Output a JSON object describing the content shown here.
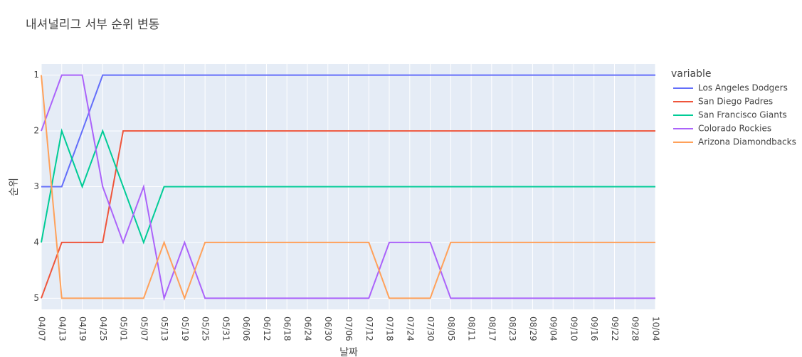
{
  "chart_data": {
    "type": "line",
    "title": "내셔널리그 서부 순위 변동",
    "x_label": "날짜",
    "y_label": "순위",
    "legend_title": "variable",
    "categories": [
      "04/07",
      "04/13",
      "04/19",
      "04/25",
      "05/01",
      "05/07",
      "05/13",
      "05/19",
      "05/25",
      "05/31",
      "06/06",
      "06/12",
      "06/18",
      "06/24",
      "06/30",
      "07/06",
      "07/12",
      "07/18",
      "07/24",
      "07/30",
      "08/05",
      "08/11",
      "08/17",
      "08/23",
      "08/29",
      "09/04",
      "09/10",
      "09/16",
      "09/22",
      "09/28",
      "10/04"
    ],
    "ylim": [
      5.2,
      0.8
    ],
    "yticks": [
      1,
      2,
      3,
      4,
      5
    ],
    "grid": true,
    "series": [
      {
        "name": "Los Angeles Dodgers",
        "color": "#636efa",
        "values": [
          3,
          3,
          2,
          1,
          1,
          1,
          1,
          1,
          1,
          1,
          1,
          1,
          1,
          1,
          1,
          1,
          1,
          1,
          1,
          1,
          1,
          1,
          1,
          1,
          1,
          1,
          1,
          1,
          1,
          1,
          1
        ]
      },
      {
        "name": "San Diego Padres",
        "color": "#ef553b",
        "values": [
          5,
          4,
          4,
          4,
          2,
          2,
          2,
          2,
          2,
          2,
          2,
          2,
          2,
          2,
          2,
          2,
          2,
          2,
          2,
          2,
          2,
          2,
          2,
          2,
          2,
          2,
          2,
          2,
          2,
          2,
          2
        ]
      },
      {
        "name": "San Francisco Giants",
        "color": "#00cc96",
        "values": [
          4,
          2,
          3,
          2,
          3,
          4,
          3,
          3,
          3,
          3,
          3,
          3,
          3,
          3,
          3,
          3,
          3,
          3,
          3,
          3,
          3,
          3,
          3,
          3,
          3,
          3,
          3,
          3,
          3,
          3,
          3
        ]
      },
      {
        "name": "Colorado Rockies",
        "color": "#ab63fa",
        "values": [
          2,
          1,
          1,
          3,
          4,
          3,
          5,
          4,
          5,
          5,
          5,
          5,
          5,
          5,
          5,
          5,
          5,
          4,
          4,
          4,
          5,
          5,
          5,
          5,
          5,
          5,
          5,
          5,
          5,
          5,
          5
        ]
      },
      {
        "name": "Arizona Diamondbacks",
        "color": "#ffa15a",
        "values": [
          1,
          5,
          5,
          5,
          5,
          5,
          4,
          5,
          4,
          4,
          4,
          4,
          4,
          4,
          4,
          4,
          4,
          5,
          5,
          5,
          4,
          4,
          4,
          4,
          4,
          4,
          4,
          4,
          4,
          4,
          4
        ]
      }
    ]
  }
}
